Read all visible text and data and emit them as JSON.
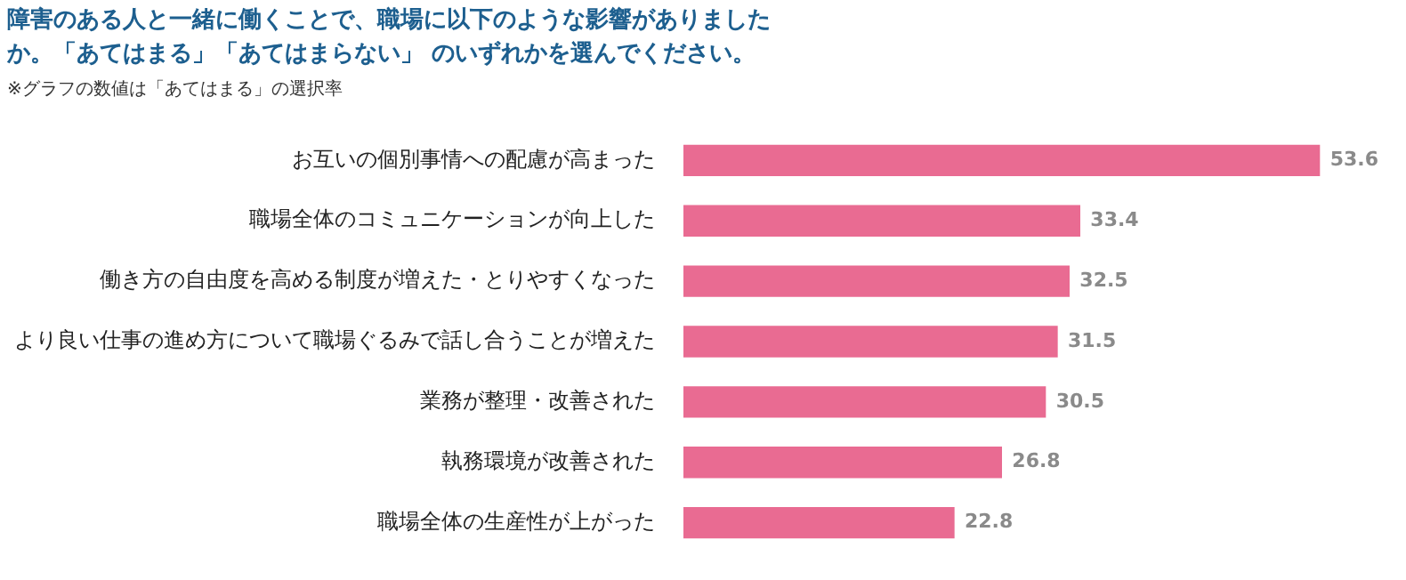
{
  "chart_data": {
    "type": "bar",
    "orientation": "horizontal",
    "title": "障害のある人と一緒に働くことで、職場に以下のような影響がありましたか。「あてはまる」「あてはまらない」 のいずれかを選んでください。",
    "subtitle": "※グラフの数値は「あてはまる」の選択率",
    "categories": [
      "お互いの個別事情への配慮が高まった",
      "職場全体のコミュニケーションが向上した",
      "働き方の自由度を高める制度が増えた・とりやすくなった",
      "より良い仕事の進め方について職場ぐるみで話し合うことが増えた",
      "業務が整理・改善された",
      "執務環境が改善された",
      "職場全体の生産性が上がった"
    ],
    "values": [
      53.6,
      33.4,
      32.5,
      31.5,
      30.5,
      26.8,
      22.8
    ],
    "color": "#e96b92",
    "data_labels": true,
    "grid": false,
    "legend": false,
    "tick_labels": "y"
  }
}
